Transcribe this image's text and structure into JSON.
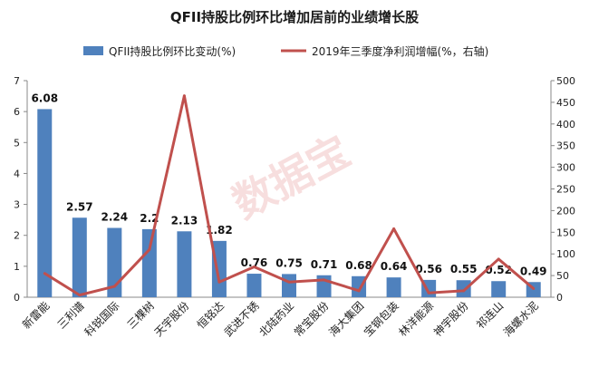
{
  "chart_data": {
    "type": "bar+line",
    "title": "QFII持股比例环比增加居前的业绩增长股",
    "categories": [
      "新雷能",
      "三利谱",
      "科锐国际",
      "三棵树",
      "天宇股份",
      "恒铭达",
      "武进不锈",
      "北陆药业",
      "常宝股份",
      "海大集团",
      "宝钢包装",
      "林洋能源",
      "神宇股份",
      "祁连山",
      "海螺水泥"
    ],
    "series": [
      {
        "name": "QFII持股比例环比变动(%)",
        "kind": "bar",
        "axis": "left",
        "color": "#4f81bd",
        "values": [
          6.08,
          2.57,
          2.24,
          2.2,
          2.13,
          1.82,
          0.76,
          0.75,
          0.71,
          0.68,
          0.64,
          0.56,
          0.55,
          0.52,
          0.49
        ],
        "labels": [
          "6.08",
          "2.57",
          "2.24",
          "2.2",
          "2.13",
          "1.82",
          "0.76",
          "0.75",
          "0.71",
          "0.68",
          "0.64",
          "0.56",
          "0.55",
          "0.52",
          "0.49"
        ]
      },
      {
        "name": "2019年三季度净利润增幅(%，右轴)",
        "kind": "line",
        "axis": "right",
        "color": "#c0504d",
        "values": [
          55,
          5,
          25,
          110,
          465,
          35,
          70,
          35,
          40,
          15,
          158,
          10,
          15,
          88,
          20
        ]
      }
    ],
    "y_left": {
      "min": 0,
      "max": 7,
      "ticks": [
        "0",
        "1",
        "2",
        "3",
        "4",
        "5",
        "6",
        "7"
      ]
    },
    "y_right": {
      "min": 0,
      "max": 500,
      "ticks": [
        "0",
        "50",
        "100",
        "150",
        "200",
        "250",
        "300",
        "350",
        "400",
        "450",
        "500"
      ]
    },
    "grid": false,
    "legend_position": "top"
  },
  "watermark": "数据宝"
}
